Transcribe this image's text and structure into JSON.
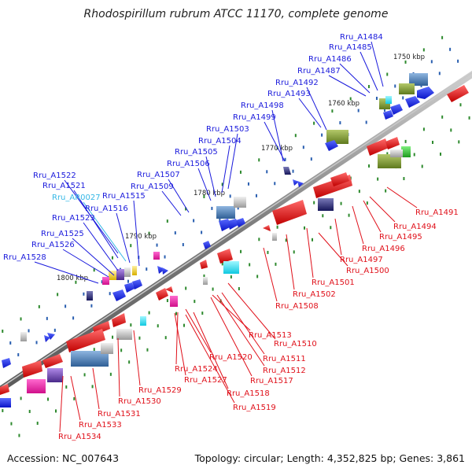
{
  "title": "Rhodospirillum rubrum ATCC 11170, complete genome",
  "footer": {
    "accession": "Accession: NC_007643",
    "summary": "Topology: circular; Length: 4,352,825 bp; Genes: 3,861"
  },
  "colors": {
    "forward_label": "#1a1adc",
    "reverse_label": "#e0101a",
    "rna_label": "#34b7e6",
    "forward_gene": "#1428e6",
    "reverse_gene": "#e8141e",
    "backbone": "#8a8a8a",
    "minor_tick_blue": "#2a5fb0",
    "minor_tick_green": "#2e8a2e"
  },
  "scale_labels": [
    "1750 kbp",
    "1760 kbp",
    "1770 kbp",
    "1780 kbp",
    "1790 kbp",
    "1800 kbp"
  ],
  "labels_upper": [
    {
      "text": "Rru_A1484",
      "kind": "forward"
    },
    {
      "text": "Rru_A1485",
      "kind": "forward"
    },
    {
      "text": "Rru_A1486",
      "kind": "forward"
    },
    {
      "text": "Rru_A1487",
      "kind": "forward"
    },
    {
      "text": "Rru_A1492",
      "kind": "forward"
    },
    {
      "text": "Rru_A1493",
      "kind": "forward"
    },
    {
      "text": "Rru_A1498",
      "kind": "forward"
    },
    {
      "text": "Rru_A1499",
      "kind": "forward"
    },
    {
      "text": "Rru_A1503",
      "kind": "forward"
    },
    {
      "text": "Rru_A1504",
      "kind": "forward"
    },
    {
      "text": "Rru_A1505",
      "kind": "forward"
    },
    {
      "text": "Rru_A1506",
      "kind": "forward"
    },
    {
      "text": "Rru_A1507",
      "kind": "forward"
    },
    {
      "text": "Rru_A1509",
      "kind": "forward"
    },
    {
      "text": "Rru_A1522",
      "kind": "forward"
    },
    {
      "text": "Rru_A1521",
      "kind": "forward"
    },
    {
      "text": "Rru_AR0027",
      "kind": "rna"
    },
    {
      "text": "Rru_A1516",
      "kind": "forward"
    },
    {
      "text": "Rru_A1515",
      "kind": "forward"
    },
    {
      "text": "Rru_A1523",
      "kind": "forward"
    },
    {
      "text": "Rru_A1525",
      "kind": "forward"
    },
    {
      "text": "Rru_A1526",
      "kind": "forward"
    },
    {
      "text": "Rru_A1528",
      "kind": "forward"
    }
  ],
  "labels_lower": [
    {
      "text": "Rru_A1491",
      "kind": "reverse"
    },
    {
      "text": "Rru_A1494",
      "kind": "reverse"
    },
    {
      "text": "Rru_A1495",
      "kind": "reverse"
    },
    {
      "text": "Rru_A1496",
      "kind": "reverse"
    },
    {
      "text": "Rru_A1497",
      "kind": "reverse"
    },
    {
      "text": "Rru_A1500",
      "kind": "reverse"
    },
    {
      "text": "Rru_A1501",
      "kind": "reverse"
    },
    {
      "text": "Rru_A1502",
      "kind": "reverse"
    },
    {
      "text": "Rru_A1508",
      "kind": "reverse"
    },
    {
      "text": "Rru_A1510",
      "kind": "reverse"
    },
    {
      "text": "Rru_A1513",
      "kind": "reverse"
    },
    {
      "text": "Rru_A1511",
      "kind": "reverse"
    },
    {
      "text": "Rru_A1512",
      "kind": "reverse"
    },
    {
      "text": "Rru_A1517",
      "kind": "reverse"
    },
    {
      "text": "Rru_A1520",
      "kind": "reverse"
    },
    {
      "text": "Rru_A1524",
      "kind": "reverse"
    },
    {
      "text": "Rru_A1518",
      "kind": "reverse"
    },
    {
      "text": "Rru_A1527",
      "kind": "reverse"
    },
    {
      "text": "Rru_A1519",
      "kind": "reverse"
    },
    {
      "text": "Rru_A1529",
      "kind": "reverse"
    },
    {
      "text": "Rru_A1530",
      "kind": "reverse"
    },
    {
      "text": "Rru_A1531",
      "kind": "reverse"
    },
    {
      "text": "Rru_A1533",
      "kind": "reverse"
    },
    {
      "text": "Rru_A1534",
      "kind": "reverse"
    }
  ]
}
